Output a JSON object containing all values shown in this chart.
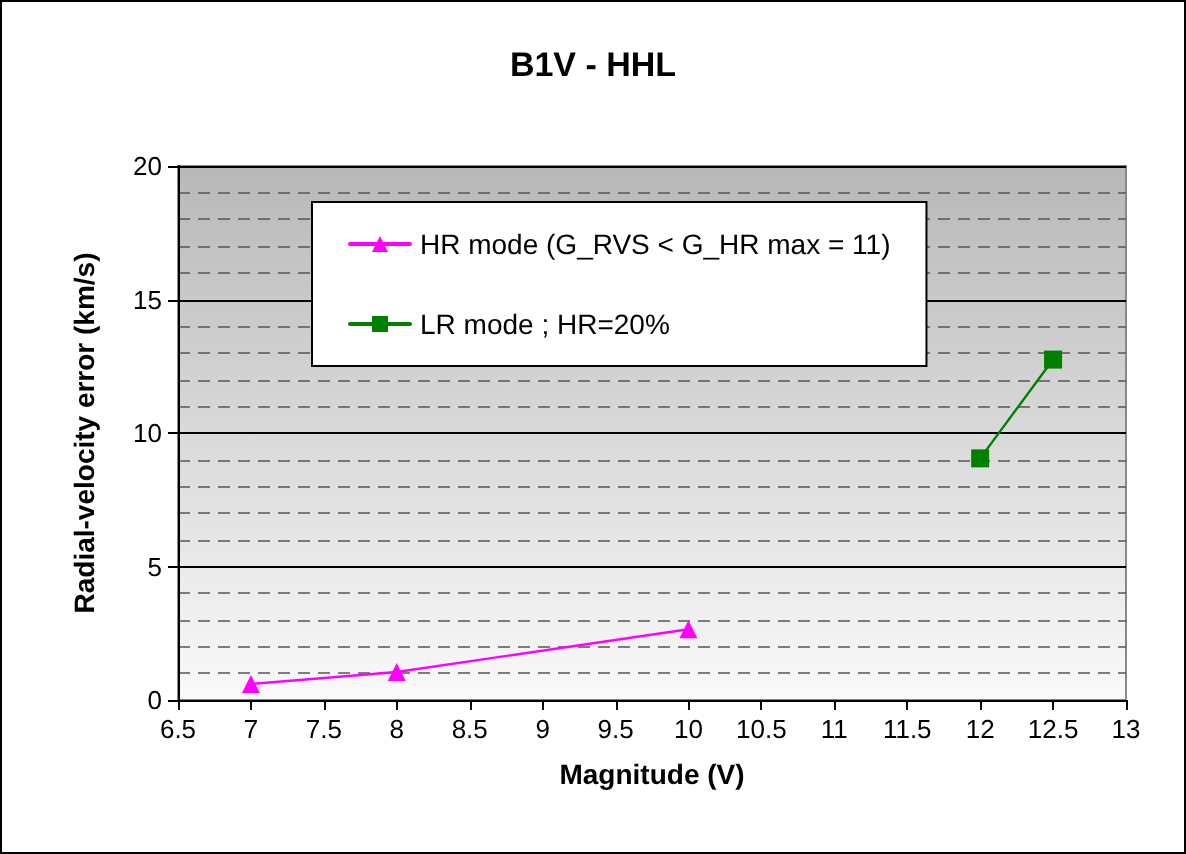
{
  "chart_data": {
    "type": "line",
    "title": "B1V - HHL",
    "xlabel": "Magnitude (V)",
    "ylabel": "Radial-velocity error (km/s)",
    "xlim": [
      6.5,
      13
    ],
    "xticks": [
      6.5,
      7,
      7.5,
      8,
      8.5,
      9,
      9.5,
      10,
      10.5,
      11,
      11.5,
      12,
      12.5,
      13
    ],
    "ylim": [
      0,
      20
    ],
    "yticks": [
      0,
      5,
      10,
      15,
      20
    ],
    "grid": "y",
    "legend": "top left",
    "series": [
      {
        "name": "HR mode (G_RVS < G_HR max = 11)",
        "color": "#ff00ff",
        "marker": "triangle",
        "x": [
          7,
          8,
          10
        ],
        "values": [
          0.6,
          1.05,
          2.65
        ]
      },
      {
        "name": "LR mode ; HR=20%",
        "color": "#008000",
        "marker": "square",
        "x": [
          12,
          12.5
        ],
        "values": [
          9.05,
          12.75
        ]
      }
    ]
  }
}
